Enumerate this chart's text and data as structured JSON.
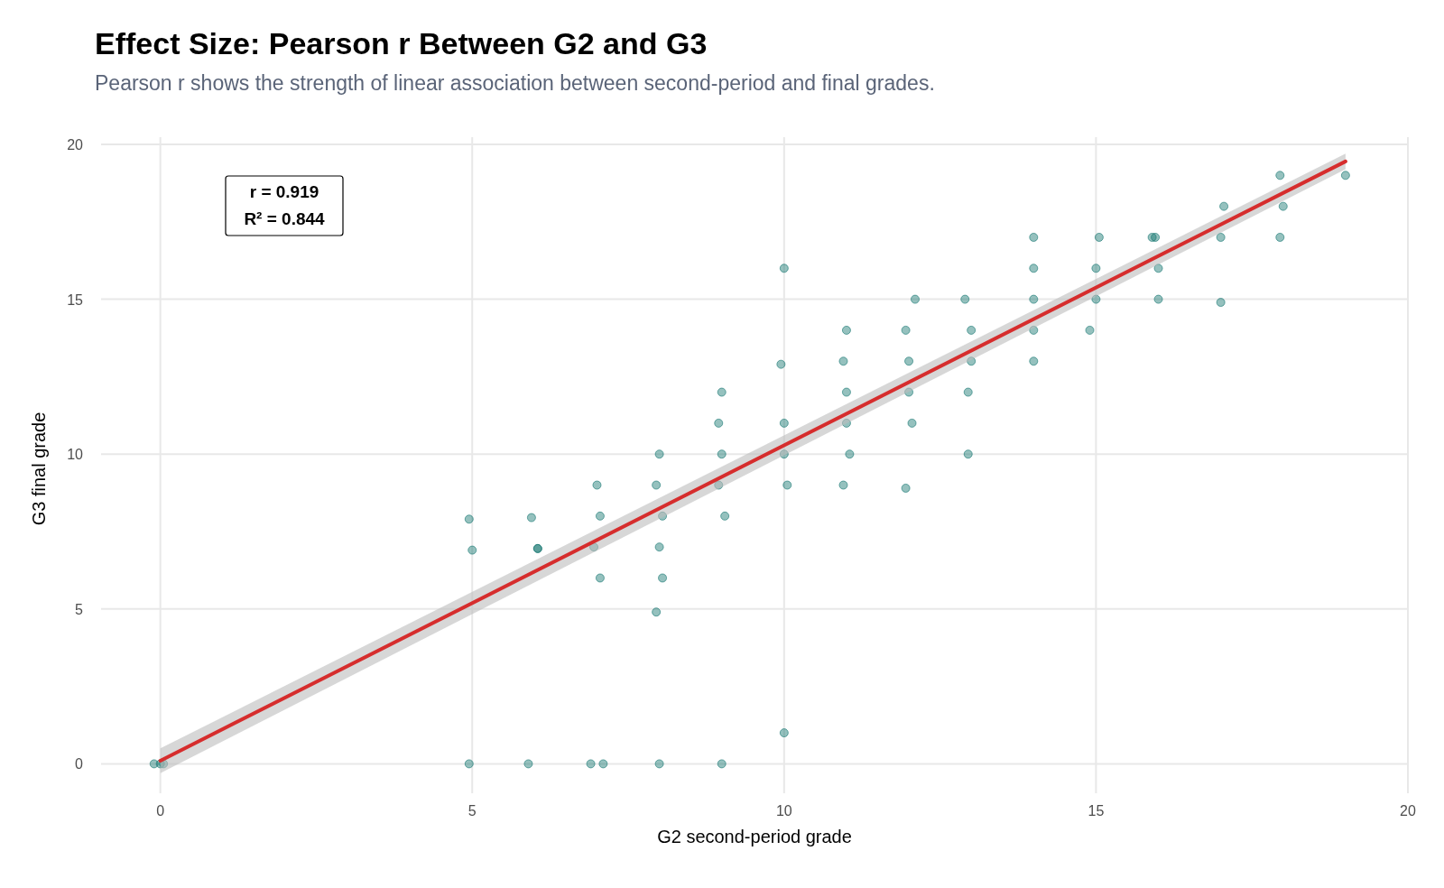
{
  "chart_data": {
    "type": "scatter",
    "title": "Effect Size: Pearson r Between G2 and G3",
    "subtitle": "Pearson r shows the strength of linear association between second-period and final grades.",
    "xlabel": "G2 second-period grade",
    "ylabel": "G3 final grade",
    "xlim": [
      -0.95,
      20
    ],
    "ylim": [
      -0.95,
      20
    ],
    "xticks": [
      0,
      5,
      10,
      15,
      20
    ],
    "yticks": [
      0,
      5,
      10,
      15,
      20
    ],
    "grid": true,
    "annotations": [
      "r = 0.919",
      "R² = 0.844"
    ],
    "series": [
      {
        "marker": "circle",
        "color": "#13756f",
        "x": [
          -0.1,
          0,
          0.05,
          4.95,
          5,
          4.95,
          5.95,
          6.05,
          6.05,
          5.9,
          7,
          7.05,
          6.95,
          7.05,
          6.9,
          7.1,
          8,
          7.95,
          8.05,
          8,
          8.05,
          7.95,
          8,
          9,
          8.95,
          9,
          8.95,
          9.05,
          9,
          10,
          9.95,
          10,
          10,
          10.05,
          10,
          11,
          10.95,
          11,
          11,
          11.05,
          10.95,
          12.1,
          11.95,
          12,
          12,
          12.05,
          11.95,
          12.9,
          13,
          13,
          12.95,
          12.95,
          14,
          14,
          14,
          14,
          14,
          15.05,
          15,
          15,
          14.9,
          15.95,
          16,
          16,
          15.9,
          17.05,
          17,
          17,
          17.95,
          18,
          17.95,
          19
        ],
        "values": [
          0,
          0,
          0,
          7.9,
          6.9,
          0,
          7.95,
          6.95,
          6.95,
          0,
          9,
          8,
          7,
          6,
          0,
          0,
          10,
          9,
          8,
          7,
          6,
          4.9,
          0,
          12,
          11,
          10,
          9,
          8,
          0,
          16,
          12.9,
          11,
          10,
          9,
          1,
          14,
          13,
          12,
          11,
          10,
          9,
          15,
          14,
          13,
          12,
          11,
          8.9,
          15,
          14,
          13,
          12,
          10,
          17,
          16,
          15,
          14,
          13,
          17,
          16,
          15,
          14,
          17,
          16,
          15,
          17,
          18,
          17,
          14.9,
          19,
          18,
          17,
          19
        ]
      },
      {
        "type": "line",
        "color": "#d62d2d",
        "x": [
          0,
          19
        ],
        "values": [
          0.1,
          19.45
        ],
        "lower": [
          -0.3,
          19.2
        ],
        "upper": [
          0.5,
          19.7
        ]
      }
    ]
  }
}
